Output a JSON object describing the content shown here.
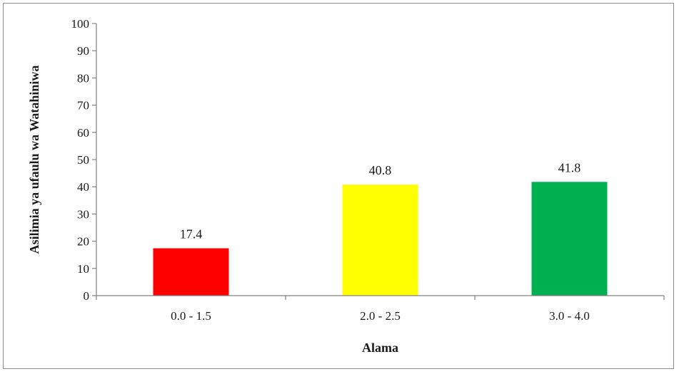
{
  "chart_data": {
    "type": "bar",
    "title": "",
    "xlabel": "Alama",
    "ylabel": "Asilimia  ya ufaulu wa Watahiniwa",
    "categories": [
      "0.0 - 1.5",
      "2.0 - 2.5",
      "3.0 - 4.0"
    ],
    "values": [
      17.4,
      40.8,
      41.8
    ],
    "value_labels": [
      "17.4",
      "40.8",
      "41.8"
    ],
    "colors": [
      "#ff0000",
      "#ffff00",
      "#00b050"
    ],
    "ylim": [
      0,
      100
    ],
    "yticks": [
      0,
      10,
      20,
      30,
      40,
      50,
      60,
      70,
      80,
      90,
      100
    ],
    "grid": false,
    "legend": "none"
  }
}
